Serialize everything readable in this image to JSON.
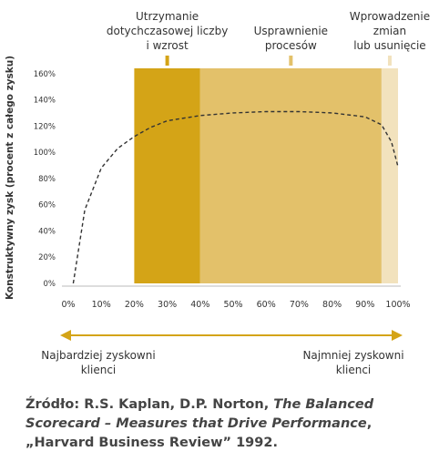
{
  "chart_data": {
    "type": "line",
    "ylabel": "Konstruktywny zysk (procent z całego zysku)",
    "x": [
      1.5,
      5,
      10,
      15,
      20,
      25,
      30,
      40,
      50,
      60,
      70,
      80,
      90,
      95,
      98,
      100
    ],
    "values": [
      0,
      56,
      88,
      103,
      112,
      119,
      124,
      128,
      130,
      131,
      131,
      130,
      127,
      121,
      108,
      89
    ],
    "color": "#333333",
    "xlim": [
      0,
      100
    ],
    "xticks": [
      {
        "value": 0,
        "label": "0%"
      },
      {
        "value": 10,
        "label": "10%"
      },
      {
        "value": 20,
        "label": "20%"
      },
      {
        "value": 30,
        "label": "30%"
      },
      {
        "value": 40,
        "label": "40%"
      },
      {
        "value": 50,
        "label": "50%"
      },
      {
        "value": 60,
        "label": "60%"
      },
      {
        "value": 70,
        "label": "70%"
      },
      {
        "value": 80,
        "label": "80%"
      },
      {
        "value": 90,
        "label": "90%"
      },
      {
        "value": 100,
        "label": "100%"
      }
    ],
    "ylim": [
      0,
      164
    ],
    "yticks": [
      {
        "value": 0,
        "label": "0%"
      },
      {
        "value": 20,
        "label": "20%"
      },
      {
        "value": 40,
        "label": "40%"
      },
      {
        "value": 60,
        "label": "60%"
      },
      {
        "value": 80,
        "label": "80%"
      },
      {
        "value": 100,
        "label": "100%"
      },
      {
        "value": 120,
        "label": "120%"
      },
      {
        "value": 140,
        "label": "140%"
      },
      {
        "value": 160,
        "label": "160%"
      }
    ],
    "bands": [
      {
        "from": 20,
        "to": 40,
        "color": "#d4a417",
        "label_lines": [
          "Utrzymanie",
          "dotychczasowej liczby",
          "i wzrost"
        ]
      },
      {
        "from": 40,
        "to": 95,
        "color": "#e3c16a",
        "label_lines": [
          "Usprawnienie",
          "procesów"
        ]
      },
      {
        "from": 95,
        "to": 100,
        "color": "#f2e2bd",
        "label_lines": [
          "Wprowadzenie",
          "zmian",
          "lub usunięcie"
        ]
      }
    ],
    "arrow_left_lines": [
      "Najbardziej zyskowni",
      "klienci"
    ],
    "arrow_right_lines": [
      "Najmniej zyskowni",
      "klienci"
    ]
  },
  "source": {
    "prefix": "Źródło: R.S. Kaplan, D.P. Norton, ",
    "italic": "The Balanced Scorecard – Measures that Drive Performance",
    "suffix": ", „Harvard Business Review” 1992."
  }
}
